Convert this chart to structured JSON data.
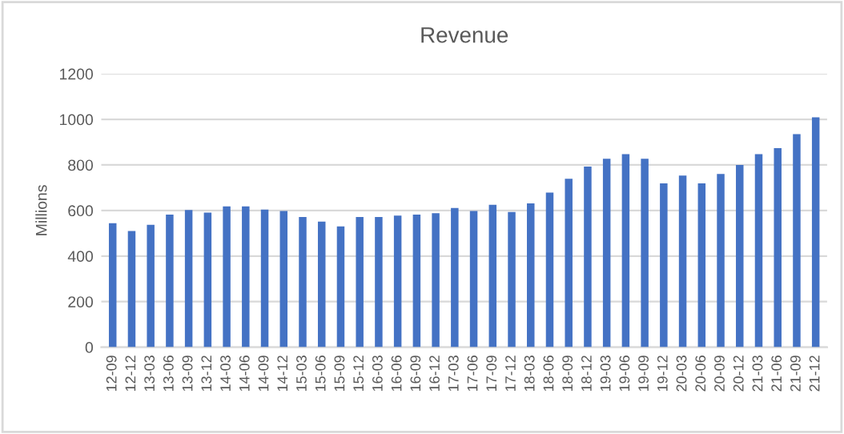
{
  "chart_data": {
    "type": "bar",
    "title": "Revenue",
    "ylabel": "Millions",
    "categories": [
      "12-09",
      "12-12",
      "13-03",
      "13-06",
      "13-09",
      "13-12",
      "14-03",
      "14-06",
      "14-09",
      "14-12",
      "15-03",
      "15-06",
      "15-09",
      "15-12",
      "16-03",
      "16-06",
      "16-09",
      "16-12",
      "17-03",
      "17-06",
      "17-09",
      "17-12",
      "18-03",
      "18-06",
      "18-09",
      "18-12",
      "19-03",
      "19-06",
      "19-09",
      "19-12",
      "20-03",
      "20-06",
      "20-09",
      "20-12",
      "21-03",
      "21-06",
      "21-09",
      "21-12"
    ],
    "values": [
      544,
      510,
      537,
      582,
      602,
      591,
      618,
      618,
      604,
      598,
      571,
      551,
      530,
      571,
      571,
      578,
      582,
      588,
      611,
      598,
      625,
      593,
      631,
      679,
      739,
      793,
      827,
      847,
      827,
      719,
      753,
      719,
      760,
      800,
      847,
      874,
      935,
      1009
    ],
    "color": "#4472c4",
    "ylim": [
      0,
      1200
    ],
    "yticks": [
      0,
      200,
      400,
      600,
      800,
      1000,
      1200
    ],
    "grid": "y"
  }
}
